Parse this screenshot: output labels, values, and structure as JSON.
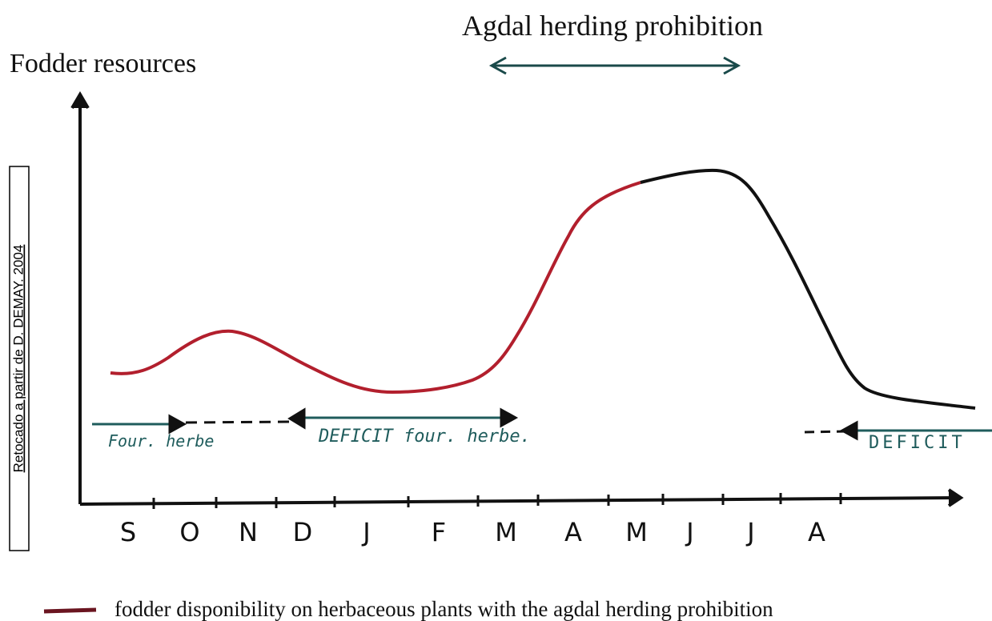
{
  "title": "Agdal herding prohibition",
  "y_axis_label": "Fodder resources",
  "source_note": "Retocado a partir de D. DEMAY. 2004",
  "months": [
    "S",
    "O",
    "N",
    "D",
    "J",
    "F",
    "M",
    "A",
    "M",
    "J",
    "J",
    "A"
  ],
  "annotations": [
    "Four. herbe",
    "DEFICIT four. herbe.",
    "DEFICIT"
  ],
  "legend": "fodder disponibility on herbaceous plants with the agdal herding prohibition"
}
